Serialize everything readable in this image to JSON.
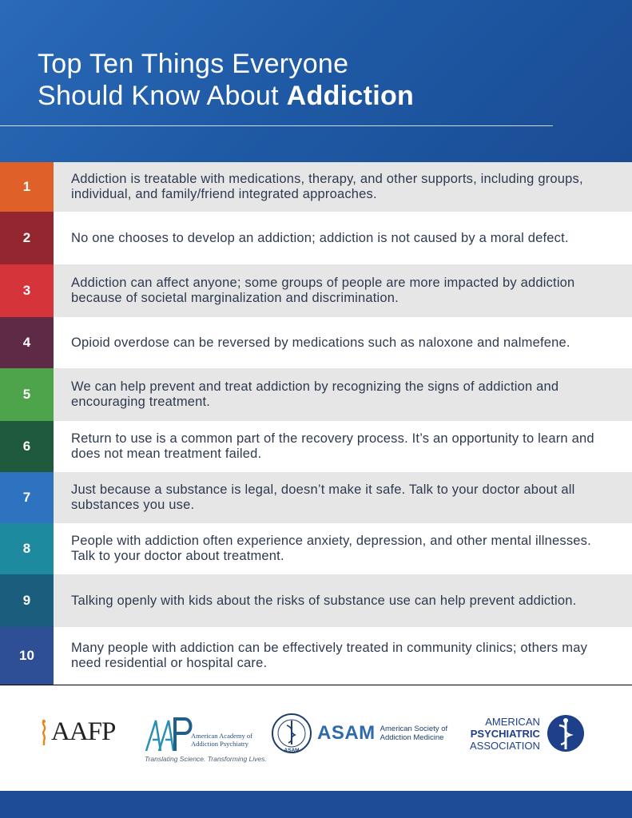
{
  "header": {
    "title_line1": "Top Ten Things Everyone",
    "title_line2_prefix": "Should Know About ",
    "title_line2_bold": "Addiction",
    "background_colors": [
      "#2a6ab8",
      "#1a4c94"
    ]
  },
  "items": [
    {
      "number": "1",
      "text": "Addiction is treatable with medications, therapy, and other supports, including groups, individual, and family/friend integrated approaches.",
      "color": "#e0602a"
    },
    {
      "number": "2",
      "text": "No one chooses to develop an addiction; addiction is not caused by a moral defect.",
      "color": "#94262f"
    },
    {
      "number": "3",
      "text": "Addiction can affect anyone; some groups of people are more impacted by addiction because of societal marginalization and discrimination.",
      "color": "#d4343a"
    },
    {
      "number": "4",
      "text": "Opioid overdose can be reversed by medications such as naloxone and nalmefene.",
      "color": "#5e2a46"
    },
    {
      "number": "5",
      "text": "We can help prevent and treat addiction by recognizing the signs of addiction and encouraging treatment.",
      "color": "#4ea44a"
    },
    {
      "number": "6",
      "text": "Return to use is a common part of the recovery process. It’s an opportunity to learn and does not mean treatment failed.",
      "color": "#1f5a3c"
    },
    {
      "number": "7",
      "text": "Just because a substance is legal, doesn’t make it safe. Talk to your doctor about all substances you use.",
      "color": "#2e73bf"
    },
    {
      "number": "8",
      "text": "People with addiction often experience anxiety, depression, and other mental illnesses. Talk to your doctor about treatment.",
      "color": "#1d8aa0"
    },
    {
      "number": "9",
      "text": "Talking openly with kids about the risks of substance use can help prevent addiction.",
      "color": "#1b5d7d"
    },
    {
      "number": "10",
      "text": "Many people with addiction can be effectively treated in community clinics; others may need residential or hospital care.",
      "color": "#2e4f95"
    }
  ],
  "logos": {
    "aafp": {
      "wordmark": "AAFP",
      "icon": "aafp-flame-icon"
    },
    "aaap": {
      "name_line1": "American Academy of",
      "name_line2": "Addiction Psychiatry",
      "tagline": "Translating Science. Transforming Lives.",
      "icon": "aaap-mark-icon"
    },
    "asam": {
      "abbr": "ASAM",
      "full_line1": "American Society of",
      "full_line2": "Addiction Medicine",
      "seal_text": "ASAM",
      "icon": "asam-seal-icon"
    },
    "apa": {
      "line1": "AMERICAN",
      "line2": "PSYCHIATRIC",
      "line3": "ASSOCIATION",
      "icon": "apa-caduceus-icon"
    }
  },
  "colors": {
    "row_gray": "#e6e6e6",
    "bottom_bar": "#1f4c96",
    "body_text": "#2e3a4f"
  }
}
